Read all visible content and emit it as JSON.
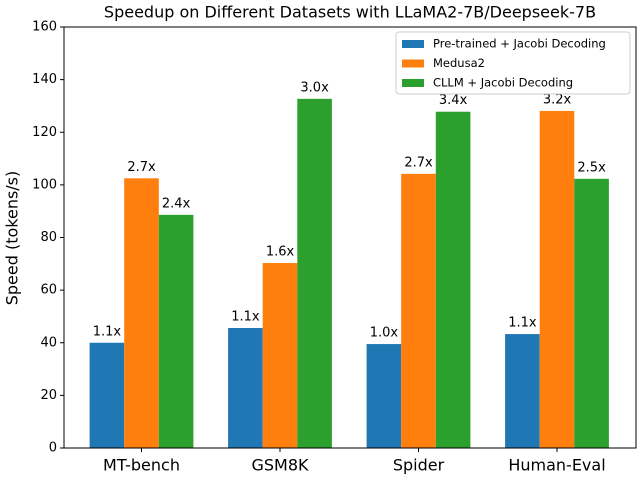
{
  "chart_data": {
    "type": "bar",
    "title": "Speedup on Different Datasets with LLaMA2-7B/Deepseek-7B",
    "y_label": "Speed (tokens/s)",
    "categories": [
      "MT-bench",
      "GSM8K",
      "Spider",
      "Human-Eval"
    ],
    "series": [
      {
        "name": "Pre-trained + Jacobi Decoding",
        "color": "#1f77b4",
        "values": [
          40,
          45.6,
          39.5,
          43.3
        ],
        "speedup_labels": [
          "1.1x",
          "1.1x",
          "1.0x",
          "1.1x"
        ]
      },
      {
        "name": "Medusa2",
        "color": "#ff7f0e",
        "values": [
          102.5,
          70.3,
          104.2,
          128.1
        ],
        "speedup_labels": [
          "2.7x",
          "1.6x",
          "2.7x",
          "3.2x"
        ]
      },
      {
        "name": "CLLM + Jacobi Decoding",
        "color": "#2ca02c",
        "values": [
          88.6,
          132.7,
          127.8,
          102.3
        ],
        "speedup_labels": [
          "2.4x",
          "3.0x",
          "3.4x",
          "2.5x"
        ]
      }
    ],
    "ylim": [
      0,
      160
    ],
    "yticks": [
      0,
      20,
      40,
      60,
      80,
      100,
      120,
      140,
      160
    ],
    "legend": "upper right"
  }
}
